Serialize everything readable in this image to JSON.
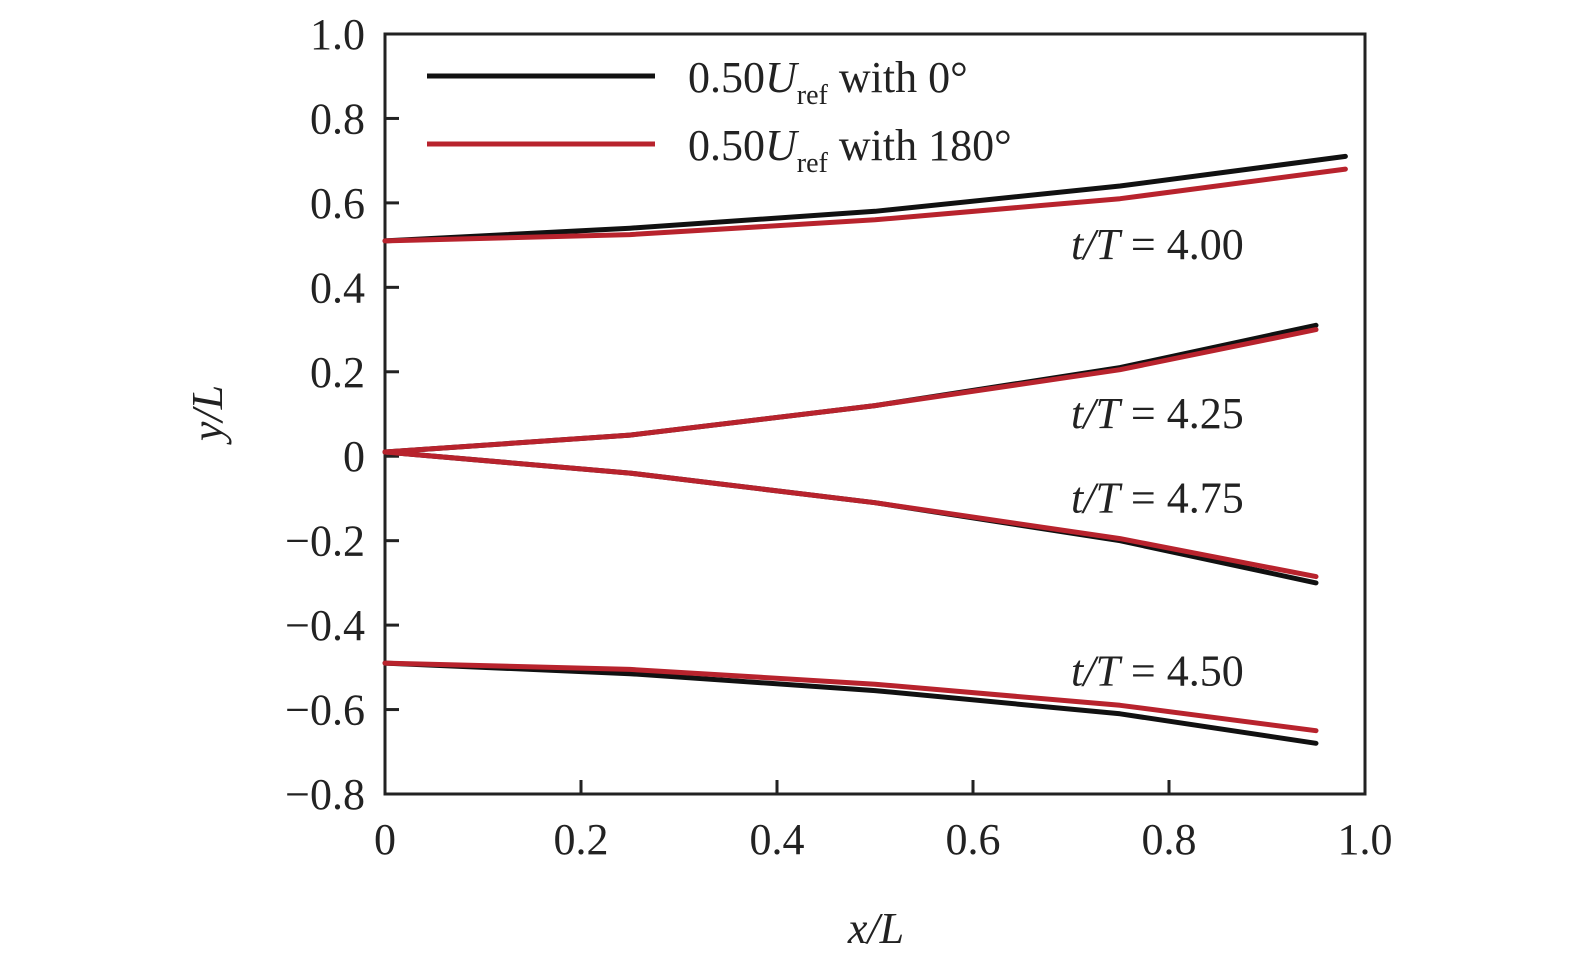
{
  "chart_data": {
    "type": "line",
    "xlabel": "x/L",
    "ylabel": "y/L",
    "xlim": [
      0,
      1.0
    ],
    "ylim": [
      -0.8,
      1.0
    ],
    "grid": false,
    "legend_position": "top-left",
    "x_ticks": [
      "0",
      "0.2",
      "0.4",
      "0.6",
      "0.8",
      "1.0"
    ],
    "y_ticks": [
      "−0.8",
      "−0.6",
      "−0.4",
      "−0.2",
      "0",
      "0.2",
      "0.4",
      "0.6",
      "0.8",
      "1.0"
    ],
    "colors": {
      "black": "#111111",
      "red": "#b8232d"
    },
    "legend": [
      {
        "color": "black",
        "prefix": "0.50",
        "var": "U",
        "sub": "ref",
        "suffix": " with 0°"
      },
      {
        "color": "red",
        "prefix": "0.50",
        "var": "U",
        "sub": "ref",
        "suffix": " with 180°"
      }
    ],
    "annotations": [
      {
        "text_italic": "t/T",
        "text_rest": " = 4.00",
        "x": 0.7,
        "y": 0.5
      },
      {
        "text_italic": "t/T",
        "text_rest": " = 4.25",
        "x": 0.7,
        "y": 0.1
      },
      {
        "text_italic": "t/T",
        "text_rest": " = 4.75",
        "x": 0.7,
        "y": -0.1
      },
      {
        "text_italic": "t/T",
        "text_rest": " = 4.50",
        "x": 0.7,
        "y": -0.51
      }
    ],
    "series": [
      {
        "group": "t/T = 4.00",
        "color": "black",
        "x": [
          0,
          0.25,
          0.5,
          0.75,
          0.98
        ],
        "y": [
          0.51,
          0.54,
          0.58,
          0.64,
          0.71
        ]
      },
      {
        "group": "t/T = 4.00",
        "color": "red",
        "x": [
          0,
          0.25,
          0.5,
          0.75,
          0.98
        ],
        "y": [
          0.51,
          0.525,
          0.56,
          0.61,
          0.68
        ]
      },
      {
        "group": "t/T = 4.25",
        "color": "black",
        "x": [
          0,
          0.25,
          0.5,
          0.75,
          0.95
        ],
        "y": [
          0.01,
          0.05,
          0.12,
          0.21,
          0.31
        ]
      },
      {
        "group": "t/T = 4.25",
        "color": "red",
        "x": [
          0,
          0.25,
          0.5,
          0.75,
          0.95
        ],
        "y": [
          0.01,
          0.05,
          0.12,
          0.205,
          0.3
        ]
      },
      {
        "group": "t/T = 4.75",
        "color": "black",
        "x": [
          0,
          0.25,
          0.5,
          0.75,
          0.95
        ],
        "y": [
          0.01,
          -0.04,
          -0.11,
          -0.2,
          -0.3
        ]
      },
      {
        "group": "t/T = 4.75",
        "color": "red",
        "x": [
          0,
          0.25,
          0.5,
          0.75,
          0.95
        ],
        "y": [
          0.01,
          -0.04,
          -0.11,
          -0.195,
          -0.285
        ]
      },
      {
        "group": "t/T = 4.50",
        "color": "black",
        "x": [
          0,
          0.25,
          0.5,
          0.75,
          0.95
        ],
        "y": [
          -0.49,
          -0.515,
          -0.555,
          -0.61,
          -0.68
        ]
      },
      {
        "group": "t/T = 4.50",
        "color": "red",
        "x": [
          0,
          0.25,
          0.5,
          0.75,
          0.95
        ],
        "y": [
          -0.49,
          -0.505,
          -0.54,
          -0.59,
          -0.65
        ]
      }
    ]
  }
}
